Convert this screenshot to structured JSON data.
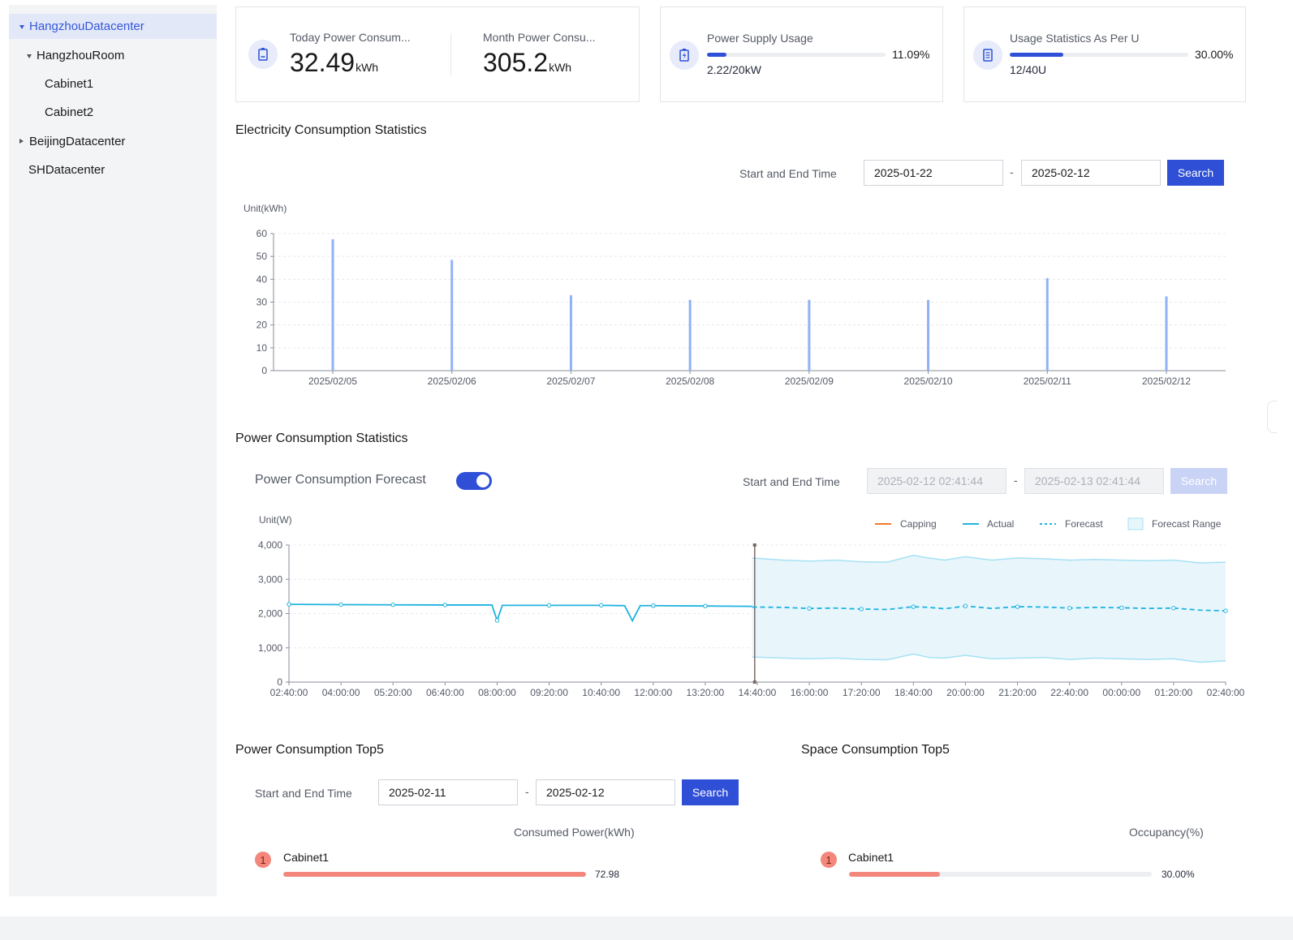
{
  "sidebar": {
    "items": [
      {
        "label": "HangzhouDatacenter"
      },
      {
        "label": "HangzhouRoom"
      },
      {
        "label": "Cabinet1"
      },
      {
        "label": "Cabinet2"
      },
      {
        "label": "BeijingDatacenter"
      },
      {
        "label": "SHDatacenter"
      }
    ]
  },
  "cards": {
    "today": {
      "label": "Today Power Consum...",
      "value": "32.49",
      "unit": "kWh"
    },
    "month": {
      "label": "Month Power Consu...",
      "value": "305.2",
      "unit": "kWh"
    },
    "supply": {
      "label": "Power Supply Usage",
      "percent": "11.09%",
      "detail": "2.22/20kW",
      "fraction": 0.1109
    },
    "space": {
      "label": "Usage Statistics As Per U",
      "percent": "30.00%",
      "detail": "12/40U",
      "fraction": 0.3
    }
  },
  "electricity": {
    "title": "Electricity Consumption Statistics",
    "time_label": "Start and End Time",
    "start": "2025-01-22",
    "end": "2025-02-12",
    "dash": "-",
    "search_label": "Search",
    "unit_label": "Unit(kWh)"
  },
  "power": {
    "title": "Power Consumption Statistics",
    "forecast_label": "Power Consumption Forecast",
    "forecast_on": true,
    "time_label": "Start and End Time",
    "start": "2025-02-12 02:41:44",
    "end": "2025-02-13 02:41:44",
    "dash": "-",
    "search_label": "Search",
    "unit_label": "Unit(W)",
    "legend": [
      "Capping",
      "Actual",
      "Forecast",
      "Forecast Range"
    ]
  },
  "top5_power": {
    "title": "Power Consumption Top5",
    "time_label": "Start and End Time",
    "start": "2025-02-11",
    "end": "2025-02-12",
    "dash": "-",
    "search_label": "Search",
    "column": "Consumed Power(kWh)",
    "rows": [
      {
        "rank": "1",
        "name": "Cabinet1",
        "value": "72.98",
        "fraction": 1.0
      }
    ]
  },
  "top5_space": {
    "title": "Space Consumption Top5",
    "column": "Occupancy(%)",
    "rows": [
      {
        "rank": "1",
        "name": "Cabinet1",
        "value": "30.00%",
        "fraction": 0.3
      }
    ]
  },
  "colors": {
    "accent": "#2e4fd6",
    "bar": "#8fb2f5",
    "actual": "#1fb3e0",
    "capping": "#f07a2e",
    "range_fill": "#e8f6fc",
    "range_line": "#a6e1f4",
    "rank": "#f3877c"
  },
  "chart_data": [
    {
      "type": "bar",
      "categories": [
        "2025/02/05",
        "2025/02/06",
        "2025/02/07",
        "2025/02/08",
        "2025/02/09",
        "2025/02/10",
        "2025/02/11",
        "2025/02/12"
      ],
      "values": [
        57.5,
        48.5,
        33,
        31,
        31,
        31,
        40.5,
        32.5
      ],
      "ylabel": "Unit(kWh)",
      "ylim": [
        0,
        60
      ],
      "yticks": [
        0,
        10,
        20,
        30,
        40,
        50,
        60
      ],
      "grid": true
    },
    {
      "type": "line",
      "x": [
        "02:40:00",
        "04:00:00",
        "05:20:00",
        "06:40:00",
        "08:00:00",
        "09:20:00",
        "10:40:00",
        "12:00:00",
        "13:20:00",
        "14:40:00",
        "16:00:00",
        "17:20:00",
        "18:40:00",
        "20:00:00",
        "21:20:00",
        "22:40:00",
        "00:00:00",
        "01:20:00",
        "02:40:00"
      ],
      "ylabel": "Unit(W)",
      "ylim": [
        0,
        4000
      ],
      "yticks": [
        "0",
        "1,000",
        "2,000",
        "3,000",
        "4,000"
      ],
      "grid": true,
      "legend_position": "top-right",
      "series": [
        {
          "name": "Actual",
          "x": [
            0,
            1,
            2,
            3,
            3.9,
            4.0,
            4.1,
            5,
            6,
            6.45,
            6.6,
            6.75,
            7,
            8,
            8.9
          ],
          "values": [
            2270,
            2260,
            2255,
            2250,
            2250,
            1800,
            2240,
            2240,
            2240,
            2230,
            1790,
            2230,
            2230,
            2220,
            2210
          ]
        },
        {
          "name": "Forecast",
          "x": [
            8.9,
            9.5,
            10,
            10.5,
            11,
            11.5,
            12,
            12.3,
            12.6,
            13,
            13.5,
            14,
            14.5,
            15,
            15.5,
            16,
            16.5,
            17,
            17.5,
            18
          ],
          "values": [
            2190,
            2180,
            2150,
            2160,
            2130,
            2120,
            2200,
            2180,
            2140,
            2220,
            2150,
            2200,
            2190,
            2160,
            2180,
            2170,
            2150,
            2160,
            2100,
            2080
          ]
        },
        {
          "name": "Forecast Range",
          "x": [
            8.9,
            9.5,
            10,
            10.5,
            11,
            11.5,
            12,
            12.3,
            12.6,
            13,
            13.5,
            14,
            14.5,
            15,
            15.5,
            16,
            16.5,
            17,
            17.5,
            18
          ],
          "upper": [
            3620,
            3560,
            3530,
            3560,
            3510,
            3500,
            3700,
            3620,
            3560,
            3660,
            3560,
            3620,
            3600,
            3560,
            3580,
            3560,
            3540,
            3560,
            3480,
            3500
          ],
          "lower": [
            730,
            700,
            680,
            700,
            660,
            650,
            820,
            720,
            700,
            780,
            680,
            700,
            720,
            660,
            700,
            680,
            660,
            680,
            580,
            620
          ]
        }
      ]
    }
  ]
}
